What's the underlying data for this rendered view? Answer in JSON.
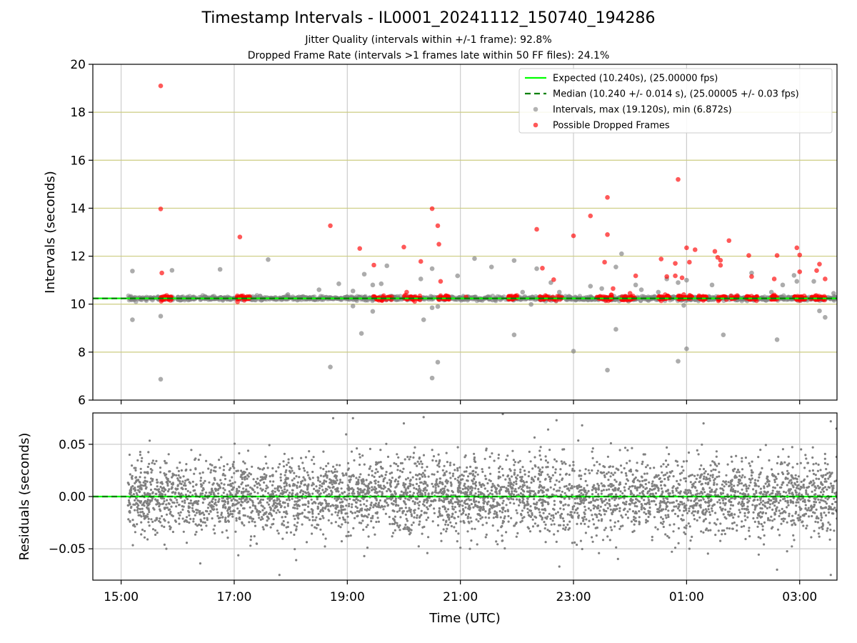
{
  "chart_data": [
    {
      "type": "scatter",
      "title": "Timestamp Intervals - IL0001_20241112_150740_194286",
      "subtitle_lines": [
        "Jitter Quality (intervals within +/-1 frame): 92.8%",
        "Dropped Frame Rate (intervals >1 frames late within 50 FF files): 24.1%"
      ],
      "xlabel": "",
      "ylabel": "Intervals (seconds)",
      "ylim": [
        6,
        20
      ],
      "yticks": [
        6,
        8,
        10,
        12,
        14,
        16,
        18,
        20
      ],
      "xlim_hours": [
        14.5,
        27.66
      ],
      "grid": "on",
      "legend_position": "top-right",
      "expected_value": 10.24,
      "median_value": 10.24,
      "series": [
        {
          "name": "Expected (10.240s), (25.00000 fps)",
          "kind": "hline",
          "color": "#00ff00",
          "y": 10.24
        },
        {
          "name": "Median (10.240 +/- 0.014 s), (25.00005 +/- 0.03 fps)",
          "kind": "hline-dashed",
          "color": "#008000",
          "y": 10.24
        },
        {
          "name": "Intervals, max (19.120s), min (6.872s)",
          "kind": "scatter",
          "color": "#808080",
          "points": [
            [
              15.2,
              11.38
            ],
            [
              15.2,
              9.35
            ],
            [
              15.7,
              9.5
            ],
            [
              15.7,
              6.87
            ],
            [
              15.9,
              11.41
            ],
            [
              16.75,
              11.45
            ],
            [
              17.6,
              11.86
            ],
            [
              18.7,
              7.38
            ],
            [
              18.85,
              10.85
            ],
            [
              19.1,
              10.55
            ],
            [
              19.1,
              9.92
            ],
            [
              19.25,
              8.78
            ],
            [
              19.3,
              11.25
            ],
            [
              19.45,
              9.7
            ],
            [
              19.45,
              10.8
            ],
            [
              19.6,
              10.85
            ],
            [
              19.7,
              11.6
            ],
            [
              20.1,
              10.3
            ],
            [
              20.3,
              11.05
            ],
            [
              20.35,
              9.35
            ],
            [
              20.5,
              11.48
            ],
            [
              20.5,
              9.85
            ],
            [
              20.5,
              6.92
            ],
            [
              20.6,
              7.58
            ],
            [
              20.6,
              9.9
            ],
            [
              20.95,
              11.18
            ],
            [
              21.25,
              11.9
            ],
            [
              21.55,
              11.55
            ],
            [
              21.95,
              11.82
            ],
            [
              21.95,
              8.72
            ],
            [
              22.25,
              9.99
            ],
            [
              22.35,
              11.48
            ],
            [
              22.6,
              10.9
            ],
            [
              22.75,
              10.5
            ],
            [
              23.0,
              8.04
            ],
            [
              23.3,
              10.75
            ],
            [
              23.5,
              10.65
            ],
            [
              23.6,
              7.25
            ],
            [
              23.75,
              11.55
            ],
            [
              23.75,
              8.95
            ],
            [
              23.85,
              12.1
            ],
            [
              24.1,
              10.8
            ],
            [
              24.2,
              10.6
            ],
            [
              24.5,
              10.5
            ],
            [
              24.65,
              11.05
            ],
            [
              24.85,
              10.9
            ],
            [
              24.95,
              9.95
            ],
            [
              25.0,
              11.0
            ],
            [
              25.0,
              8.14
            ],
            [
              24.85,
              7.62
            ],
            [
              25.45,
              10.8
            ],
            [
              25.65,
              8.72
            ],
            [
              26.15,
              11.3
            ],
            [
              26.5,
              10.5
            ],
            [
              26.6,
              8.52
            ],
            [
              26.7,
              10.8
            ],
            [
              26.9,
              11.2
            ],
            [
              26.95,
              10.95
            ],
            [
              27.25,
              10.95
            ],
            [
              27.35,
              9.72
            ],
            [
              27.45,
              9.45
            ],
            [
              27.6,
              10.45
            ],
            [
              18.5,
              10.6
            ],
            [
              17.95,
              10.4
            ],
            [
              22.1,
              10.5
            ]
          ],
          "dense_band": {
            "x_range": [
              15.12,
              27.66
            ],
            "y_center": 10.24,
            "y_spread": 0.08
          }
        },
        {
          "name": "Possible Dropped Frames",
          "kind": "scatter",
          "color": "#ff0000",
          "points": [
            [
              15.7,
              19.1
            ],
            [
              15.7,
              13.97
            ],
            [
              15.72,
              11.3
            ],
            [
              17.1,
              12.8
            ],
            [
              18.7,
              13.27
            ],
            [
              19.22,
              12.32
            ],
            [
              19.47,
              11.63
            ],
            [
              20.0,
              12.38
            ],
            [
              20.05,
              10.5
            ],
            [
              20.3,
              11.78
            ],
            [
              20.5,
              13.98
            ],
            [
              20.6,
              13.27
            ],
            [
              20.62,
              12.5
            ],
            [
              20.65,
              10.95
            ],
            [
              21.1,
              10.3
            ],
            [
              22.35,
              13.12
            ],
            [
              22.45,
              11.5
            ],
            [
              22.65,
              11.02
            ],
            [
              23.0,
              12.85
            ],
            [
              23.3,
              13.68
            ],
            [
              23.55,
              11.75
            ],
            [
              23.6,
              12.9
            ],
            [
              23.6,
              14.45
            ],
            [
              23.7,
              10.65
            ],
            [
              24.1,
              11.18
            ],
            [
              24.0,
              10.45
            ],
            [
              24.55,
              11.88
            ],
            [
              24.65,
              11.15
            ],
            [
              24.85,
              15.2
            ],
            [
              24.8,
              11.7
            ],
            [
              24.8,
              11.18
            ],
            [
              24.92,
              11.1
            ],
            [
              25.0,
              12.35
            ],
            [
              25.05,
              11.75
            ],
            [
              25.15,
              12.27
            ],
            [
              25.5,
              12.2
            ],
            [
              25.55,
              11.95
            ],
            [
              25.6,
              11.62
            ],
            [
              25.6,
              11.83
            ],
            [
              25.75,
              12.65
            ],
            [
              26.1,
              12.03
            ],
            [
              26.15,
              11.15
            ],
            [
              26.55,
              11.05
            ],
            [
              26.6,
              12.03
            ],
            [
              26.95,
              12.35
            ],
            [
              27.0,
              12.05
            ],
            [
              27.0,
              11.35
            ],
            [
              27.3,
              11.4
            ],
            [
              27.35,
              11.67
            ],
            [
              27.45,
              11.05
            ],
            [
              24.95,
              10.4
            ]
          ],
          "band_clusters_x": [
            [
              15.7,
              15.9
            ],
            [
              17.05,
              17.3
            ],
            [
              19.45,
              19.8
            ],
            [
              20.0,
              20.3
            ],
            [
              20.6,
              20.8
            ],
            [
              21.85,
              22.0
            ],
            [
              22.4,
              22.8
            ],
            [
              23.4,
              23.7
            ],
            [
              23.85,
              24.1
            ],
            [
              24.5,
              24.7
            ],
            [
              24.85,
              25.1
            ],
            [
              25.2,
              25.35
            ],
            [
              25.55,
              25.9
            ],
            [
              26.05,
              26.25
            ],
            [
              26.5,
              26.6
            ],
            [
              26.9,
              27.1
            ],
            [
              27.2,
              27.45
            ]
          ]
        }
      ]
    },
    {
      "type": "scatter",
      "xlabel": "Time (UTC)",
      "ylabel": "Residuals (seconds)",
      "ylim": [
        -0.08,
        0.08
      ],
      "yticks": [
        -0.05,
        0.0,
        0.05
      ],
      "ytick_labels": [
        "−0.05",
        "0.00",
        "0.05"
      ],
      "xticks_hours": [
        15,
        17,
        19,
        21,
        23,
        25,
        27
      ],
      "xtick_labels": [
        "15:00",
        "17:00",
        "19:00",
        "21:00",
        "23:00",
        "01:00",
        "03:00"
      ],
      "grid": "on",
      "series": [
        {
          "name": "",
          "kind": "hline",
          "color": "#00ff00",
          "y": 0.0
        },
        {
          "name": "",
          "kind": "scatter",
          "color": "#808080",
          "x_range": [
            15.12,
            27.66
          ],
          "approx_count": 4400,
          "y_spread_std": 0.018,
          "outliers": [
            [
              15.15,
              0.04
            ],
            [
              15.8,
              -0.05
            ],
            [
              16.4,
              -0.064
            ],
            [
              17.8,
              -0.075
            ],
            [
              18.75,
              0.075
            ],
            [
              19.3,
              -0.057
            ],
            [
              20.0,
              0.07
            ],
            [
              20.35,
              0.076
            ],
            [
              21.0,
              -0.049
            ],
            [
              21.75,
              0.079
            ],
            [
              22.75,
              -0.067
            ],
            [
              22.7,
              0.073
            ],
            [
              24.8,
              -0.049
            ],
            [
              25.05,
              -0.05
            ],
            [
              25.3,
              0.07
            ],
            [
              26.6,
              -0.07
            ],
            [
              27.55,
              -0.075
            ],
            [
              27.65,
              0.065
            ],
            [
              27.55,
              0.072
            ],
            [
              19.1,
              0.075
            ]
          ]
        }
      ]
    }
  ],
  "colors": {
    "grid_main_h": "#cccc80",
    "grid_v": "#cccccc",
    "scatter_gray": "#808080",
    "scatter_red": "#ff0000",
    "expected_line": "#00ff00",
    "median_line": "#008000"
  }
}
